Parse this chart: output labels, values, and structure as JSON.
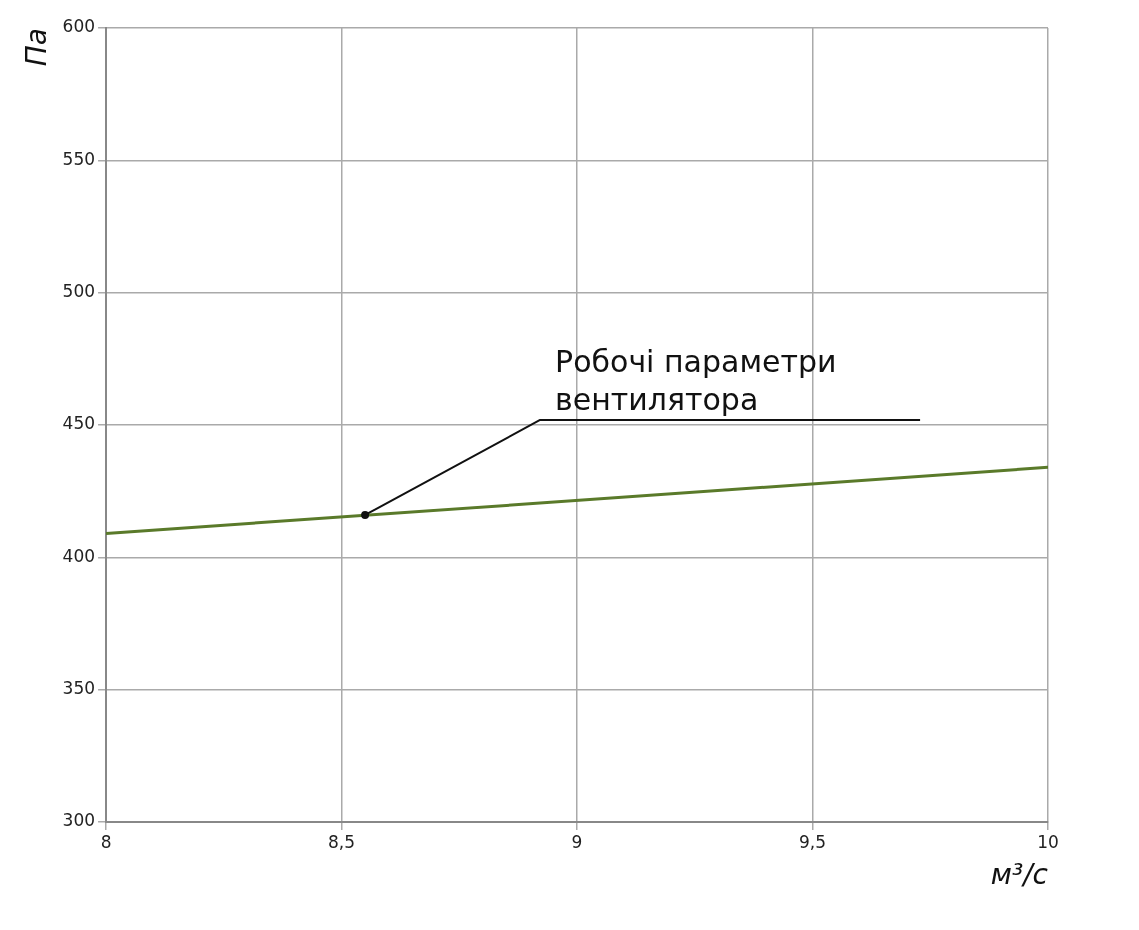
{
  "chart_data": {
    "type": "line",
    "xlabel": "м³/с",
    "ylabel": "Па",
    "x": [
      8,
      10
    ],
    "series": [
      {
        "color": "#5a7a2a",
        "values": [
          409,
          434
        ]
      }
    ],
    "xlim": [
      8,
      10
    ],
    "xticks": [
      8,
      {
        "value": 8.5,
        "label": "8,5"
      },
      9,
      {
        "value": 9.5,
        "label": "9,5"
      },
      10
    ],
    "ylim": [
      300,
      600
    ],
    "yticks": [
      300,
      350,
      400,
      450,
      500,
      550,
      600
    ],
    "grid": true,
    "marker": "none",
    "line_style": "solid",
    "annotations": [
      {
        "text": "Робочі параметри\nвентилятора",
        "x": 8.55,
        "y": 416
      }
    ]
  }
}
